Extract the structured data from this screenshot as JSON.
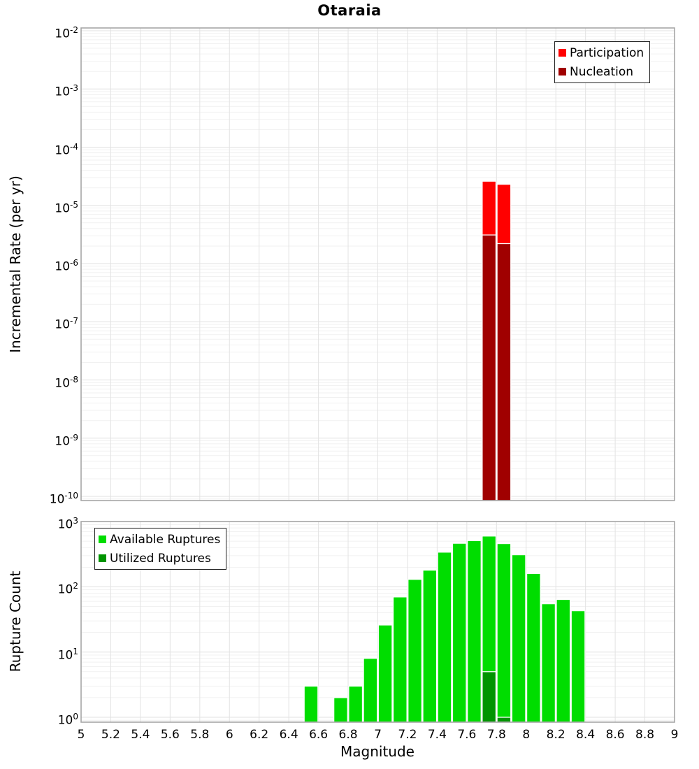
{
  "title": "Otaraia",
  "xlabel": "Magnitude",
  "xticks": [
    "5",
    "5.2",
    "5.4",
    "5.6",
    "5.8",
    "6",
    "6.2",
    "6.4",
    "6.6",
    "6.8",
    "7",
    "7.2",
    "7.4",
    "7.6",
    "7.8",
    "8",
    "8.2",
    "8.4",
    "8.6",
    "8.8",
    "9"
  ],
  "xtick_values": [
    5,
    5.2,
    5.4,
    5.6,
    5.8,
    6,
    6.2,
    6.4,
    6.6,
    6.8,
    7,
    7.2,
    7.4,
    7.6,
    7.8,
    8,
    8.2,
    8.4,
    8.6,
    8.8,
    9
  ],
  "chart_data": [
    {
      "id": "incremental-rate",
      "type": "bar",
      "ylabel": "Incremental Rate (per yr)",
      "xlabel": "Magnitude",
      "x_range": [
        5,
        9
      ],
      "y_scale": "log",
      "y_range_exponents": [
        -10,
        -2
      ],
      "ytick_exponents": [
        -2,
        -3,
        -4,
        -5,
        -6,
        -7,
        -8,
        -9,
        -10
      ],
      "bin_width": 0.1,
      "grid": true,
      "legend_position": "top-right",
      "series": [
        {
          "name": "Participation",
          "color": "#ff0000",
          "x": [
            7.75,
            7.85
          ],
          "values": [
            2.6e-05,
            2.3e-05
          ]
        },
        {
          "name": "Nucleation",
          "color": "#a00000",
          "x": [
            7.75,
            7.85
          ],
          "values": [
            3.1e-06,
            2.2e-06
          ]
        }
      ]
    },
    {
      "id": "rupture-count",
      "type": "bar",
      "ylabel": "Rupture Count",
      "xlabel": "Magnitude",
      "x_range": [
        5,
        9
      ],
      "y_scale": "log",
      "y_range_exponents": [
        0,
        3
      ],
      "ytick_exponents": [
        3,
        2,
        1,
        0
      ],
      "bin_width": 0.1,
      "grid": true,
      "legend_position": "top-left",
      "series": [
        {
          "name": "Available Ruptures",
          "color": "#00dd00",
          "x": [
            6.55,
            6.75,
            6.85,
            6.95,
            7.05,
            7.15,
            7.25,
            7.35,
            7.45,
            7.55,
            7.65,
            7.75,
            7.85,
            7.95,
            8.05,
            8.15,
            8.25,
            8.35
          ],
          "values": [
            3,
            2,
            3,
            8,
            26,
            70,
            130,
            180,
            340,
            465,
            510,
            600,
            460,
            310,
            160,
            55,
            64,
            43
          ]
        },
        {
          "name": "Utilized Ruptures",
          "color": "#009400",
          "x": [
            7.75,
            7.85
          ],
          "values": [
            5,
            1
          ]
        }
      ]
    }
  ]
}
